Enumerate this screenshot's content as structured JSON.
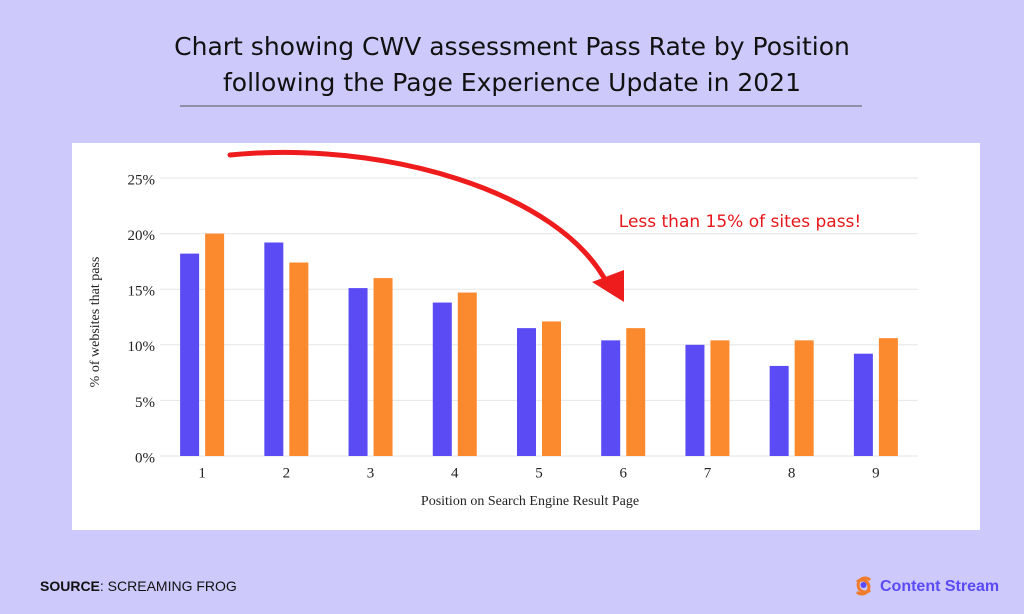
{
  "chart_data": {
    "type": "bar",
    "title": [
      "Chart showing CWV assessment Pass Rate by Position",
      "following the Page Experience Update in 2021"
    ],
    "annotation": "Less than 15% of sites pass!",
    "ylabel": "% of websites that pass",
    "xlabel": "Position on Search Engine Result Page",
    "categories": [
      "1",
      "2",
      "3",
      "4",
      "5",
      "6",
      "7",
      "8",
      "9"
    ],
    "series": [
      {
        "color": "#5a4bf4",
        "values": [
          18.2,
          19.2,
          15.1,
          13.8,
          11.5,
          10.4,
          10.0,
          8.1,
          9.2
        ]
      },
      {
        "color": "#fb8a2f",
        "values": [
          20.0,
          17.4,
          16.0,
          14.7,
          12.1,
          11.5,
          10.4,
          10.4,
          10.6
        ]
      }
    ],
    "ylim": [
      0,
      25
    ],
    "yticks": [
      {
        "value": 0,
        "label": "0%"
      },
      {
        "value": 5,
        "label": "5%"
      },
      {
        "value": 10,
        "label": "10%"
      },
      {
        "value": 15,
        "label": "15%"
      },
      {
        "value": 20,
        "label": "20%"
      },
      {
        "value": 25,
        "label": "25%"
      }
    ],
    "grid": true
  },
  "footer": {
    "source_key": "SOURCE",
    "source_text": ": SCREAMING FROG",
    "logo": "Content Stream"
  }
}
